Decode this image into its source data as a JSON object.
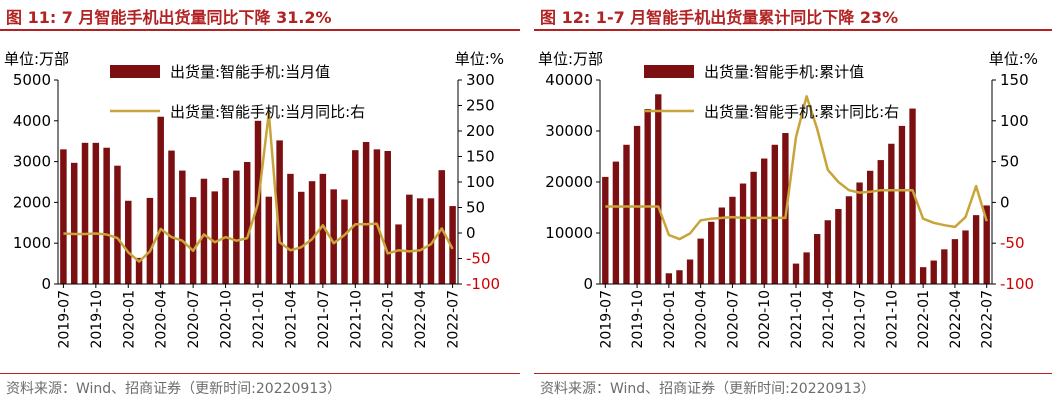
{
  "source": "资料来源：Wind、招商证券（更新时间:20220913）",
  "colors": {
    "bar": "#7b0f12",
    "line": "#c9a43a",
    "title": "#b22222",
    "neg_tick": "#d00000"
  },
  "chart_data": [
    {
      "type": "bar",
      "title": "图 11:  7 月智能手机出货量同比下降 31.2%",
      "left_unit": "单位:万部",
      "right_unit": "单位:%",
      "categories": [
        "2019-07",
        "2019-08",
        "2019-09",
        "2019-10",
        "2019-11",
        "2019-12",
        "2020-01",
        "2020-02",
        "2020-03",
        "2020-04",
        "2020-05",
        "2020-06",
        "2020-07",
        "2020-08",
        "2020-09",
        "2020-10",
        "2020-11",
        "2020-12",
        "2021-01",
        "2021-02",
        "2021-03",
        "2021-04",
        "2021-05",
        "2021-06",
        "2021-07",
        "2021-08",
        "2021-09",
        "2021-10",
        "2021-11",
        "2021-12",
        "2022-01",
        "2022-02",
        "2022-03",
        "2022-04",
        "2022-05",
        "2022-06",
        "2022-07"
      ],
      "x_tick_labels": [
        "2019-07",
        "2019-10",
        "2020-01",
        "2020-04",
        "2020-07",
        "2020-10",
        "2021-01",
        "2021-04",
        "2021-07",
        "2021-10",
        "2022-01",
        "2022-04",
        "2022-07"
      ],
      "ylim_left": [
        0,
        5000
      ],
      "yticks_left": [
        "0",
        "1000",
        "2000",
        "3000",
        "4000",
        "5000"
      ],
      "ylim_right": [
        -100,
        300
      ],
      "yticks_right": [
        "-100",
        "-50",
        "0",
        "50",
        "100",
        "150",
        "200",
        "250",
        "300"
      ],
      "series": [
        {
          "name": "出货量:智能手机:当月值",
          "type": "bar",
          "axis": "left",
          "values": [
            3300,
            2970,
            3460,
            3460,
            3340,
            2900,
            2040,
            640,
            2110,
            4100,
            3270,
            2780,
            2130,
            2580,
            2270,
            2600,
            2780,
            2990,
            4000,
            2140,
            3520,
            2700,
            2260,
            2520,
            2700,
            2320,
            2070,
            3280,
            3480,
            3300,
            3260,
            1460,
            2190,
            2100,
            2100,
            2790,
            1910
          ]
        },
        {
          "name": "出货量:智能手机:当月同比:右",
          "type": "line",
          "axis": "right",
          "values": [
            -1,
            -2,
            -2,
            -1,
            -3,
            -10,
            -38,
            -56,
            -36,
            8,
            -8,
            -15,
            -35,
            -3,
            -18,
            -8,
            -15,
            -10,
            58,
            235,
            -18,
            -34,
            -28,
            -12,
            15,
            -20,
            -4,
            17,
            17,
            18,
            -40,
            -34,
            -36,
            -34,
            -22,
            9,
            -31.2
          ]
        }
      ]
    },
    {
      "type": "bar",
      "title": "图 12:  1-7 月智能手机出货量累计同比下降 23%",
      "left_unit": "单位:万部",
      "right_unit": "单位:%",
      "categories": [
        "2019-07",
        "2019-08",
        "2019-09",
        "2019-10",
        "2019-11",
        "2019-12",
        "2020-01",
        "2020-02",
        "2020-03",
        "2020-04",
        "2020-05",
        "2020-06",
        "2020-07",
        "2020-08",
        "2020-09",
        "2020-10",
        "2020-11",
        "2020-12",
        "2021-01",
        "2021-02",
        "2021-03",
        "2021-04",
        "2021-05",
        "2021-06",
        "2021-07",
        "2021-08",
        "2021-09",
        "2021-10",
        "2021-11",
        "2021-12",
        "2022-01",
        "2022-02",
        "2022-03",
        "2022-04",
        "2022-05",
        "2022-06",
        "2022-07"
      ],
      "x_tick_labels": [
        "2019-07",
        "2019-10",
        "2020-01",
        "2020-04",
        "2020-07",
        "2020-10",
        "2021-01",
        "2021-04",
        "2021-07",
        "2021-10",
        "2022-01",
        "2022-04",
        "2022-07"
      ],
      "ylim_left": [
        0,
        40000
      ],
      "yticks_left": [
        "0",
        "10000",
        "20000",
        "30000",
        "40000"
      ],
      "ylim_right": [
        -100,
        150
      ],
      "yticks_right": [
        "-100",
        "-50",
        "0",
        "50",
        "100",
        "150"
      ],
      "series": [
        {
          "name": "出货量:智能手机:累计值",
          "type": "bar",
          "axis": "left",
          "values": [
            21000,
            24000,
            27300,
            31000,
            34300,
            37200,
            2100,
            2700,
            4800,
            8900,
            12200,
            15000,
            17100,
            19700,
            22000,
            24600,
            27300,
            29600,
            4000,
            6200,
            9800,
            12500,
            14700,
            17200,
            19900,
            22200,
            24300,
            27500,
            31000,
            34400,
            3300,
            4600,
            6800,
            8800,
            10500,
            13500,
            15400
          ]
        },
        {
          "name": "出货量:智能手机:累计同比:右",
          "type": "line",
          "axis": "right",
          "values": [
            -5,
            -5,
            -5,
            -5,
            -5,
            -5,
            -40,
            -45,
            -38,
            -22,
            -20,
            -19,
            -18,
            -19,
            -19,
            -19,
            -19,
            -19,
            80,
            130,
            90,
            40,
            25,
            15,
            12,
            13,
            15,
            15,
            15,
            15,
            -20,
            -25,
            -28,
            -30,
            -18,
            20,
            -23
          ]
        }
      ]
    }
  ]
}
